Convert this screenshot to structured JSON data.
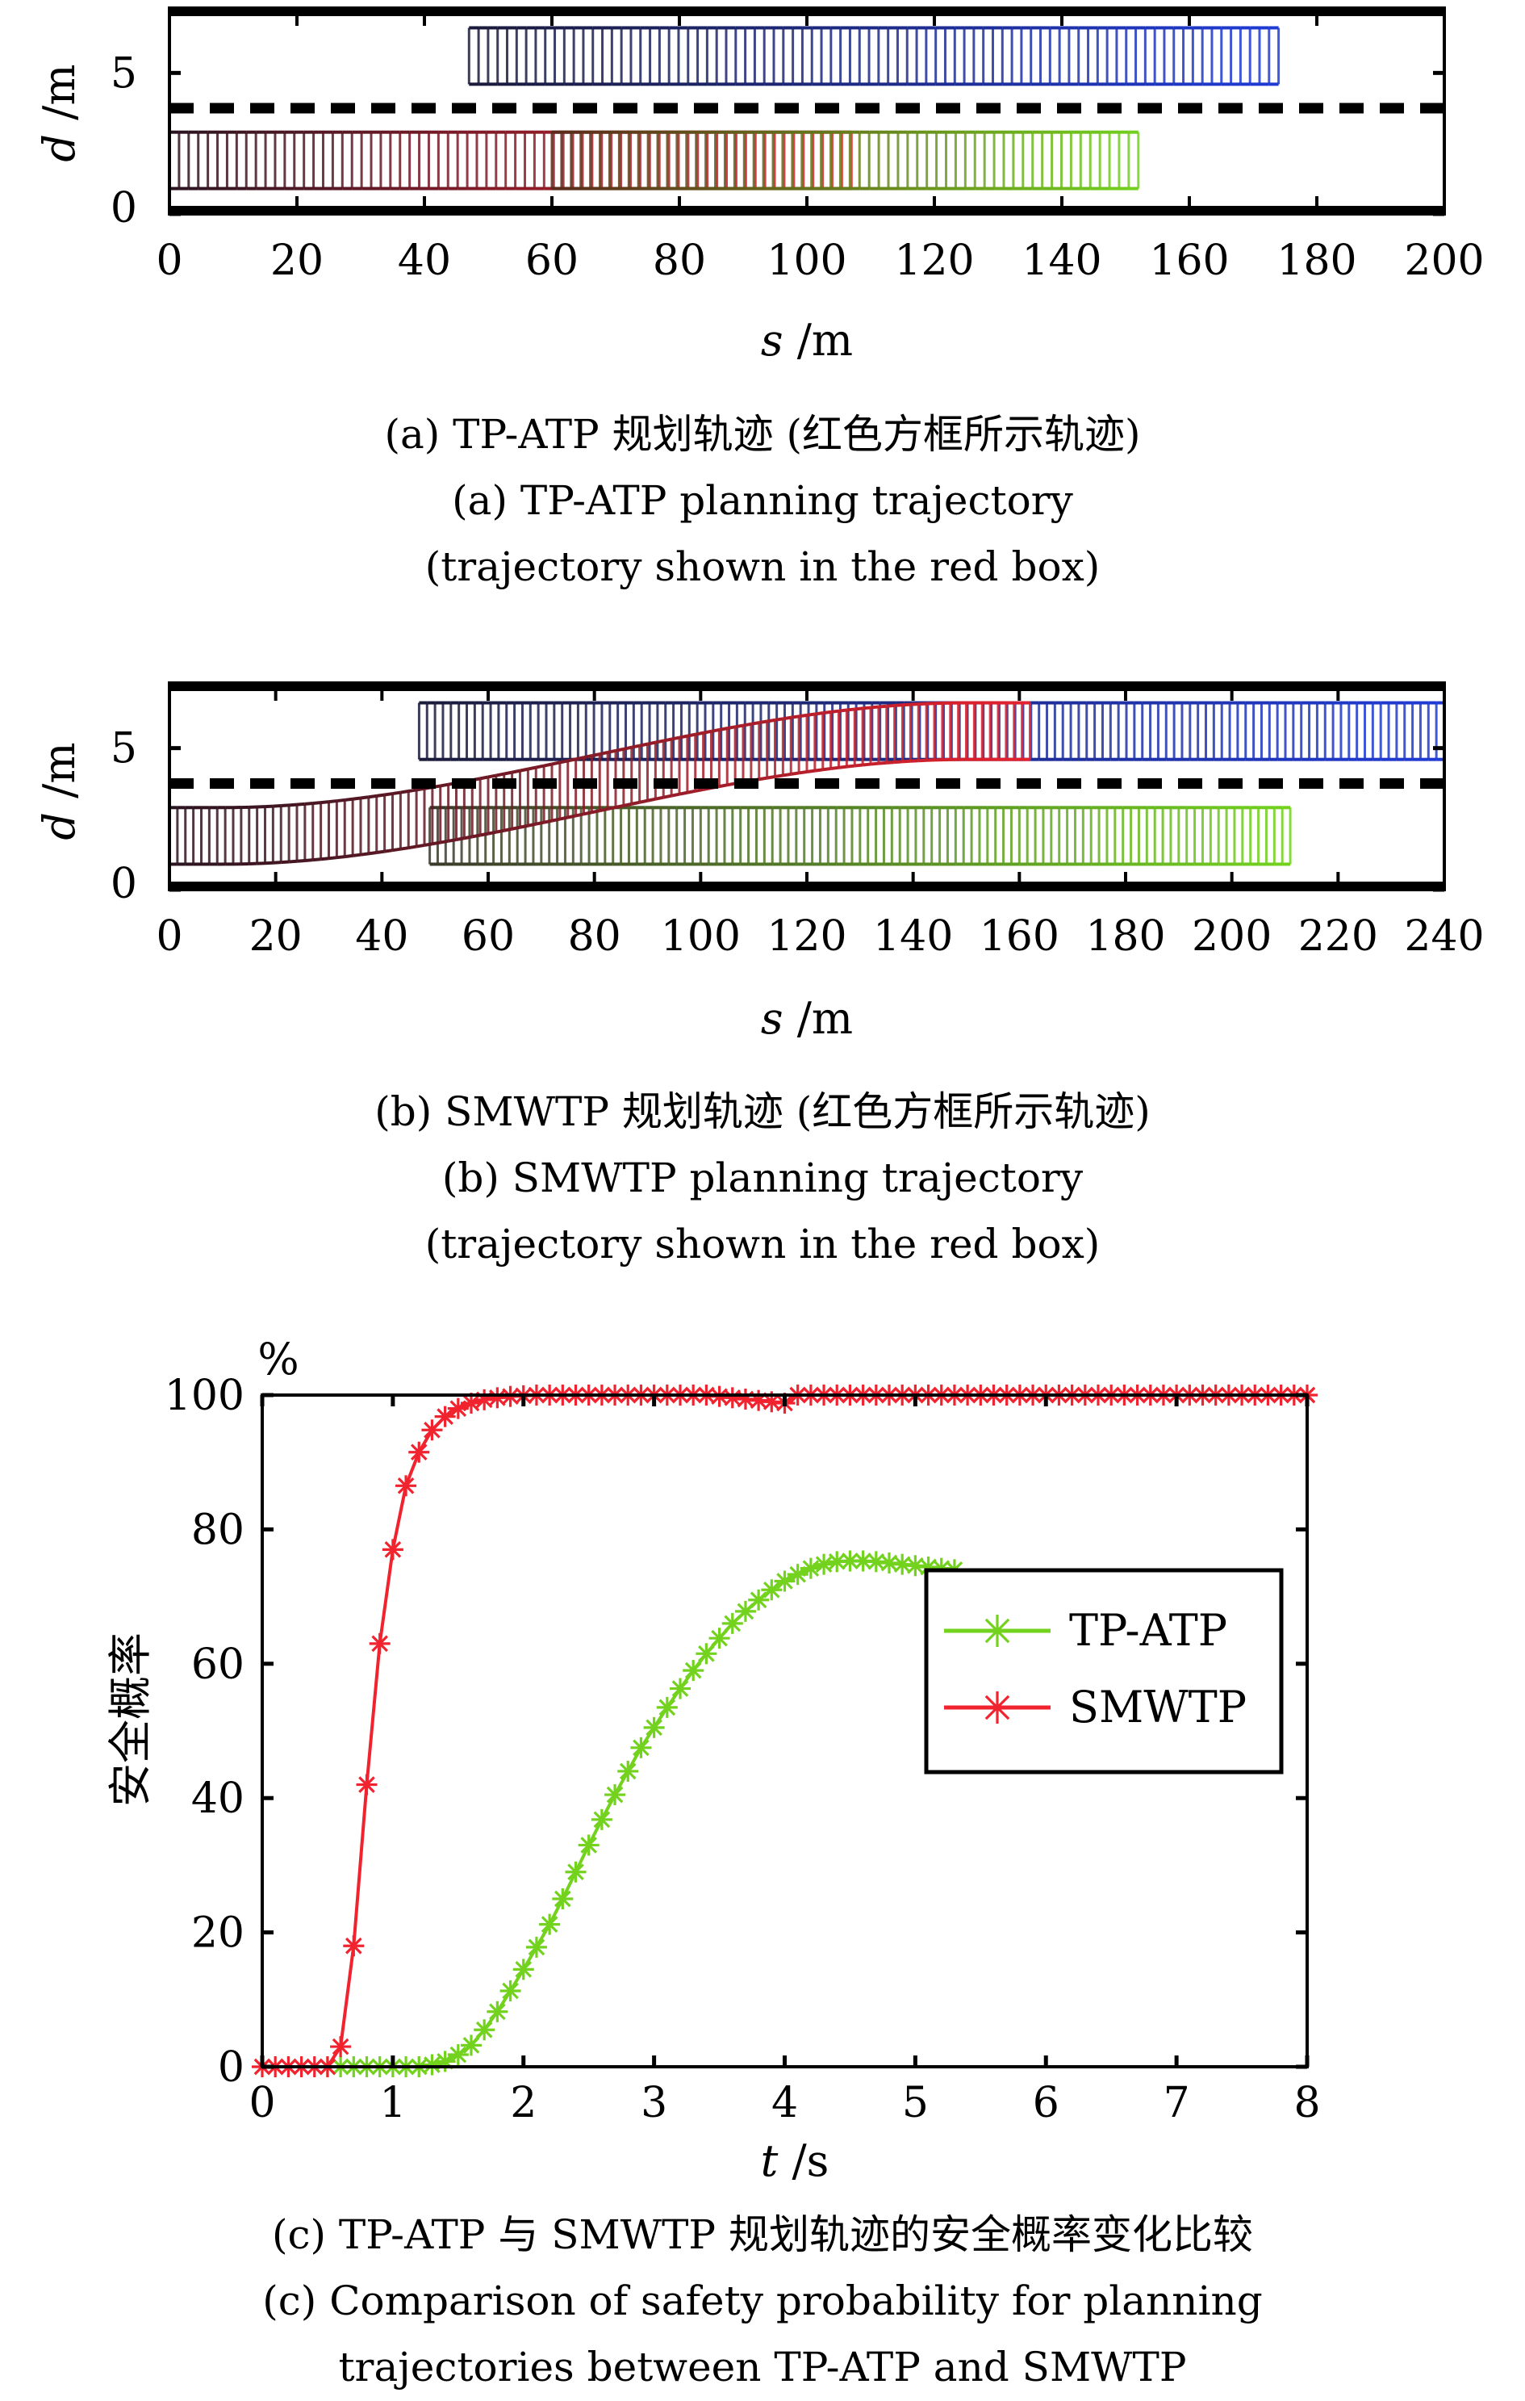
{
  "chart_data": [
    {
      "id": "a",
      "type": "scatter",
      "title": "",
      "xlabel": "s /m",
      "ylabel": "d /m",
      "xlim": [
        0,
        200
      ],
      "ylim": [
        0,
        7.3
      ],
      "x_ticks": [
        0,
        20,
        40,
        60,
        80,
        100,
        120,
        140,
        160,
        180,
        200
      ],
      "y_ticks": [
        0,
        5
      ],
      "lane_divider_d": 3.75,
      "vehicle_width": 2,
      "series": [
        {
          "name": "obstacle-upper-lane",
          "color": "#1f3bd6",
          "start_color": "#1a1a3a",
          "s_start": 47,
          "s_end": 174,
          "d_center": 5.6,
          "style": "straight"
        },
        {
          "name": "ego-planned-trajectory",
          "color": "#e8222e",
          "start_color": "#2a1420",
          "s_start": 0,
          "s_end": 107,
          "d_center": 1.9,
          "style": "straight"
        },
        {
          "name": "obstacle-lower-lane",
          "color": "#72d21e",
          "start_color": "#5a2a1a",
          "s_start": 60,
          "s_end": 152,
          "d_center": 1.9,
          "style": "straight"
        }
      ],
      "caption_cn": "(a) TP-ATP 规划轨迹 (红色方框所示轨迹)",
      "caption_en_1": "(a) TP-ATP planning trajectory",
      "caption_en_2": "(trajectory shown in the red box)"
    },
    {
      "id": "b",
      "type": "scatter",
      "title": "",
      "xlabel": "s /m",
      "ylabel": "d /m",
      "xlim": [
        0,
        240
      ],
      "ylim": [
        0,
        7.3
      ],
      "x_ticks": [
        0,
        20,
        40,
        60,
        80,
        100,
        120,
        140,
        160,
        180,
        200,
        220,
        240
      ],
      "y_ticks": [
        0,
        5
      ],
      "lane_divider_d": 3.75,
      "vehicle_width": 2,
      "series": [
        {
          "name": "obstacle-upper-lane",
          "color": "#1f3bd6",
          "start_color": "#1a1a3a",
          "s_start": 47,
          "s_end": 240,
          "d_center": 5.6,
          "style": "straight"
        },
        {
          "name": "obstacle-lower-lane",
          "color": "#72d21e",
          "start_color": "#3a3a2a",
          "s_start": 49,
          "s_end": 211,
          "d_center": 1.9,
          "style": "straight"
        },
        {
          "name": "ego-planned-trajectory",
          "color": "#e8222e",
          "start_color": "#2a1420",
          "s_start": 0,
          "s_end": 162,
          "d_start": 1.9,
          "d_end": 5.6,
          "lane_change_s": [
            10,
            150
          ],
          "style": "lane-change"
        }
      ],
      "caption_cn": "(b) SMWTP 规划轨迹 (红色方框所示轨迹)",
      "caption_en_1": "(b) SMWTP planning trajectory",
      "caption_en_2": "(trajectory shown in the red box)"
    },
    {
      "id": "c",
      "type": "line",
      "title": "",
      "xlabel": "t /s",
      "ylabel": "安全概率",
      "yunit": "%",
      "xlim": [
        0,
        8
      ],
      "ylim": [
        0,
        100
      ],
      "x_ticks": [
        0,
        1,
        2,
        3,
        4,
        5,
        6,
        7,
        8
      ],
      "y_ticks": [
        0,
        20,
        40,
        60,
        80,
        100
      ],
      "legend_position": "center-right",
      "series": [
        {
          "name": "TP-ATP",
          "color": "#72d21e",
          "marker": "asterisk",
          "x": [
            0.5,
            0.6,
            0.7,
            0.8,
            0.9,
            1.0,
            1.1,
            1.2,
            1.3,
            1.4,
            1.5,
            1.6,
            1.7,
            1.8,
            1.9,
            2.0,
            2.1,
            2.2,
            2.3,
            2.4,
            2.5,
            2.6,
            2.7,
            2.8,
            2.9,
            3.0,
            3.1,
            3.2,
            3.3,
            3.4,
            3.5,
            3.6,
            3.7,
            3.8,
            3.9,
            4.0,
            4.1,
            4.2,
            4.3,
            4.4,
            4.5,
            4.6,
            4.7,
            4.8,
            4.9,
            5.0,
            5.1,
            5.2,
            5.3
          ],
          "y": [
            0,
            0,
            0,
            0,
            0,
            0,
            0,
            0,
            0.3,
            0.8,
            1.8,
            3.2,
            5.5,
            8.2,
            11.3,
            14.5,
            17.8,
            21.2,
            25.0,
            29.0,
            33.0,
            36.8,
            40.5,
            44.0,
            47.5,
            50.5,
            53.5,
            56.3,
            59.0,
            61.5,
            63.8,
            66.0,
            67.8,
            69.5,
            71.0,
            72.3,
            73.3,
            74.2,
            74.8,
            75.2,
            75.3,
            75.3,
            75.2,
            75.0,
            74.8,
            74.6,
            74.4,
            74.2,
            74.0
          ]
        },
        {
          "name": "SMWTP",
          "color": "#f0232f",
          "marker": "asterisk",
          "x": [
            0.0,
            0.1,
            0.2,
            0.3,
            0.4,
            0.5,
            0.6,
            0.7,
            0.8,
            0.9,
            1.0,
            1.1,
            1.2,
            1.3,
            1.4,
            1.5,
            1.6,
            1.7,
            1.8,
            1.9,
            2.0,
            2.1,
            2.2,
            2.3,
            2.4,
            2.5,
            2.6,
            2.7,
            2.8,
            2.9,
            3.0,
            3.1,
            3.2,
            3.3,
            3.4,
            3.5,
            3.6,
            3.7,
            3.8,
            3.9,
            4.0,
            4.1,
            4.2,
            4.3,
            4.4,
            4.5,
            4.6,
            4.7,
            4.8,
            4.9,
            5.0,
            5.1,
            5.2,
            5.3,
            5.4,
            5.5,
            5.6,
            5.7,
            5.8,
            5.9,
            6.0,
            6.1,
            6.2,
            6.3,
            6.4,
            6.5,
            6.6,
            6.7,
            6.8,
            6.9,
            7.0,
            7.1,
            7.2,
            7.3,
            7.4,
            7.5,
            7.6,
            7.7,
            7.8,
            7.9,
            8.0
          ],
          "y": [
            0,
            0,
            0,
            0,
            0,
            0,
            3,
            18,
            42,
            63,
            77,
            86.5,
            91.5,
            94.8,
            96.8,
            98,
            98.8,
            99.3,
            99.6,
            99.8,
            99.9,
            100,
            100,
            100,
            100,
            100,
            100,
            100,
            100,
            100,
            100,
            100,
            100,
            100,
            100,
            99.8,
            99.6,
            99.4,
            99.2,
            99.0,
            98.8,
            100,
            100,
            100,
            100,
            100,
            100,
            100,
            100,
            100,
            100,
            100,
            100,
            100,
            100,
            100,
            100,
            100,
            100,
            100,
            100,
            100,
            100,
            100,
            100,
            100,
            100,
            100,
            100,
            100,
            100,
            100,
            100,
            100,
            100,
            100,
            100,
            100,
            100,
            100,
            100
          ]
        }
      ],
      "caption_cn": "(c) TP-ATP 与 SMWTP 规划轨迹的安全概率变化比较",
      "caption_en_1": "(c) Comparison of safety probability for planning",
      "caption_en_2": "trajectories between TP-ATP and SMWTP"
    }
  ]
}
